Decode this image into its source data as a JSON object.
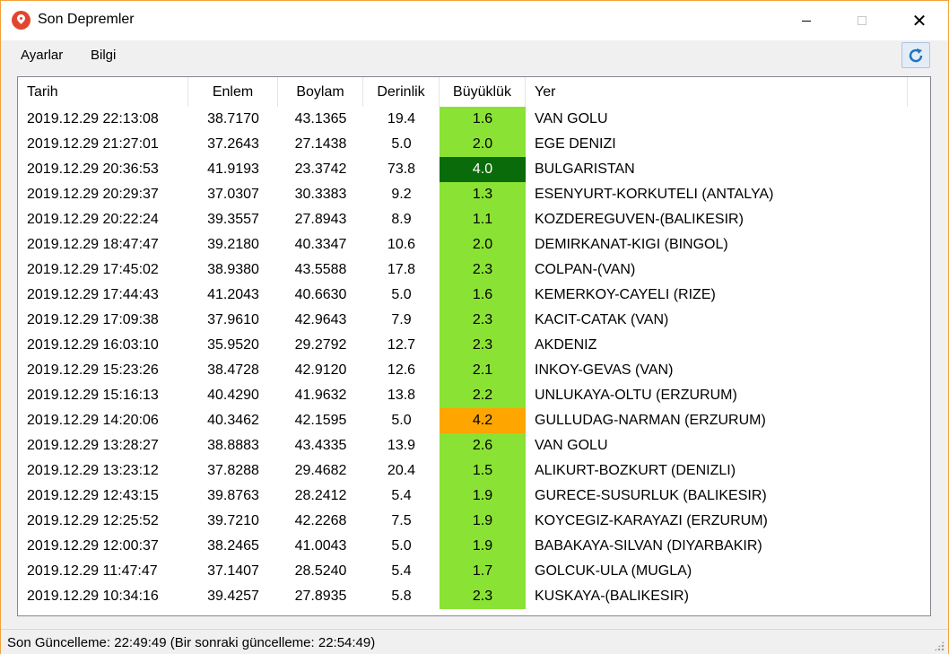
{
  "window": {
    "title": "Son Depremler",
    "icon": "map-pin-icon"
  },
  "menu": {
    "items": [
      "Ayarlar",
      "Bilgi"
    ],
    "refresh_icon": "refresh-icon"
  },
  "table": {
    "columns": [
      "Tarih",
      "Enlem",
      "Boylam",
      "Derinlik",
      "Büyüklük",
      "Yer"
    ],
    "rows": [
      {
        "tarih": "2019.12.29 22:13:08",
        "enlem": "38.7170",
        "boylam": "43.1365",
        "derinlik": "19.4",
        "buyukluk": "1.6",
        "yer": "VAN GOLU",
        "color": "#8ae234",
        "text_color": "#000000"
      },
      {
        "tarih": "2019.12.29 21:27:01",
        "enlem": "37.2643",
        "boylam": "27.1438",
        "derinlik": "5.0",
        "buyukluk": "2.0",
        "yer": "EGE DENIZI",
        "color": "#8ae234",
        "text_color": "#000000"
      },
      {
        "tarih": "2019.12.29 20:36:53",
        "enlem": "41.9193",
        "boylam": "23.3742",
        "derinlik": "73.8",
        "buyukluk": "4.0",
        "yer": "BULGARISTAN",
        "color": "#0a6b0a",
        "text_color": "#ffffff"
      },
      {
        "tarih": "2019.12.29 20:29:37",
        "enlem": "37.0307",
        "boylam": "30.3383",
        "derinlik": "9.2",
        "buyukluk": "1.3",
        "yer": "ESENYURT-KORKUTELI (ANTALYA)",
        "color": "#8ae234",
        "text_color": "#000000"
      },
      {
        "tarih": "2019.12.29 20:22:24",
        "enlem": "39.3557",
        "boylam": "27.8943",
        "derinlik": "8.9",
        "buyukluk": "1.1",
        "yer": "KOZDEREGUVEN-(BALIKESIR)",
        "color": "#8ae234",
        "text_color": "#000000"
      },
      {
        "tarih": "2019.12.29 18:47:47",
        "enlem": "39.2180",
        "boylam": "40.3347",
        "derinlik": "10.6",
        "buyukluk": "2.0",
        "yer": "DEMIRKANAT-KIGI (BINGOL)",
        "color": "#8ae234",
        "text_color": "#000000"
      },
      {
        "tarih": "2019.12.29 17:45:02",
        "enlem": "38.9380",
        "boylam": "43.5588",
        "derinlik": "17.8",
        "buyukluk": "2.3",
        "yer": "COLPAN-(VAN)",
        "color": "#8ae234",
        "text_color": "#000000"
      },
      {
        "tarih": "2019.12.29 17:44:43",
        "enlem": "41.2043",
        "boylam": "40.6630",
        "derinlik": "5.0",
        "buyukluk": "1.6",
        "yer": "KEMERKOY-CAYELI (RIZE)",
        "color": "#8ae234",
        "text_color": "#000000"
      },
      {
        "tarih": "2019.12.29 17:09:38",
        "enlem": "37.9610",
        "boylam": "42.9643",
        "derinlik": "7.9",
        "buyukluk": "2.3",
        "yer": "KACIT-CATAK (VAN)",
        "color": "#8ae234",
        "text_color": "#000000"
      },
      {
        "tarih": "2019.12.29 16:03:10",
        "enlem": "35.9520",
        "boylam": "29.2792",
        "derinlik": "12.7",
        "buyukluk": "2.3",
        "yer": "AKDENIZ",
        "color": "#8ae234",
        "text_color": "#000000"
      },
      {
        "tarih": "2019.12.29 15:23:26",
        "enlem": "38.4728",
        "boylam": "42.9120",
        "derinlik": "12.6",
        "buyukluk": "2.1",
        "yer": "INKOY-GEVAS (VAN)",
        "color": "#8ae234",
        "text_color": "#000000"
      },
      {
        "tarih": "2019.12.29 15:16:13",
        "enlem": "40.4290",
        "boylam": "41.9632",
        "derinlik": "13.8",
        "buyukluk": "2.2",
        "yer": "UNLUKAYA-OLTU (ERZURUM)",
        "color": "#8ae234",
        "text_color": "#000000"
      },
      {
        "tarih": "2019.12.29 14:20:06",
        "enlem": "40.3462",
        "boylam": "42.1595",
        "derinlik": "5.0",
        "buyukluk": "4.2",
        "yer": "GULLUDAG-NARMAN (ERZURUM)",
        "color": "#ffa500",
        "text_color": "#000000"
      },
      {
        "tarih": "2019.12.29 13:28:27",
        "enlem": "38.8883",
        "boylam": "43.4335",
        "derinlik": "13.9",
        "buyukluk": "2.6",
        "yer": "VAN GOLU",
        "color": "#8ae234",
        "text_color": "#000000"
      },
      {
        "tarih": "2019.12.29 13:23:12",
        "enlem": "37.8288",
        "boylam": "29.4682",
        "derinlik": "20.4",
        "buyukluk": "1.5",
        "yer": "ALIKURT-BOZKURT (DENIZLI)",
        "color": "#8ae234",
        "text_color": "#000000"
      },
      {
        "tarih": "2019.12.29 12:43:15",
        "enlem": "39.8763",
        "boylam": "28.2412",
        "derinlik": "5.4",
        "buyukluk": "1.9",
        "yer": "GURECE-SUSURLUK (BALIKESIR)",
        "color": "#8ae234",
        "text_color": "#000000"
      },
      {
        "tarih": "2019.12.29 12:25:52",
        "enlem": "39.7210",
        "boylam": "42.2268",
        "derinlik": "7.5",
        "buyukluk": "1.9",
        "yer": "KOYCEGIZ-KARAYAZI (ERZURUM)",
        "color": "#8ae234",
        "text_color": "#000000"
      },
      {
        "tarih": "2019.12.29 12:00:37",
        "enlem": "38.2465",
        "boylam": "41.0043",
        "derinlik": "5.0",
        "buyukluk": "1.9",
        "yer": "BABAKAYA-SILVAN (DIYARBAKIR)",
        "color": "#8ae234",
        "text_color": "#000000"
      },
      {
        "tarih": "2019.12.29 11:47:47",
        "enlem": "37.1407",
        "boylam": "28.5240",
        "derinlik": "5.4",
        "buyukluk": "1.7",
        "yer": "GOLCUK-ULA (MUGLA)",
        "color": "#8ae234",
        "text_color": "#000000"
      },
      {
        "tarih": "2019.12.29 10:34:16",
        "enlem": "39.4257",
        "boylam": "27.8935",
        "derinlik": "5.8",
        "buyukluk": "2.3",
        "yer": "KUSKAYA-(BALIKESIR)",
        "color": "#8ae234",
        "text_color": "#000000"
      }
    ]
  },
  "status": {
    "text": "Son Güncelleme: 22:49:49 (Bir sonraki güncelleme: 22:54:49)"
  }
}
